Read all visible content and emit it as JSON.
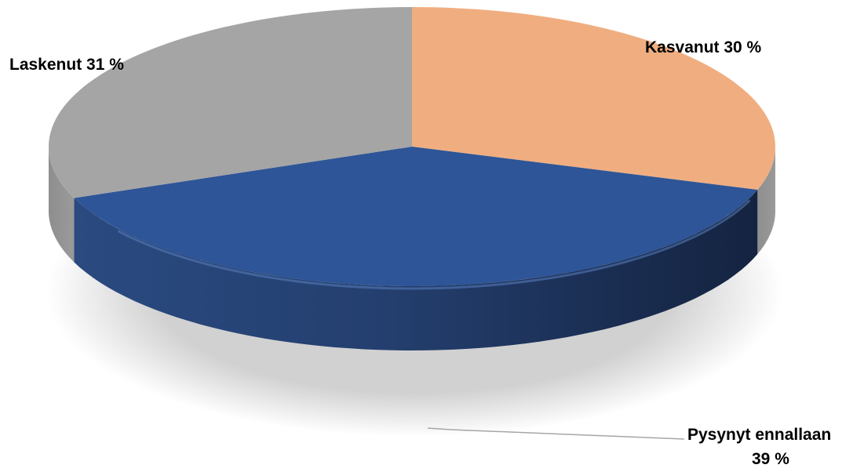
{
  "chart_data": {
    "type": "pie",
    "style": "3d",
    "title": "",
    "slices": [
      {
        "label": "Kasvanut",
        "value": 30,
        "value_label": "30 %",
        "color": "#F0AE80"
      },
      {
        "label": "Pysynyt ennallaan",
        "value": 39,
        "value_label": "39 %",
        "color": "#2E5597"
      },
      {
        "label": "Laskenut",
        "value": 31,
        "value_label": "31 %",
        "color": "#A5A5A5"
      }
    ],
    "labels": {
      "kasvanut": "Kasvanut 30 %",
      "laskenut": "Laskenut 31 %",
      "pysynyt_line1": "Pysynyt ennallaan",
      "pysynyt_line2": "39 %"
    }
  }
}
